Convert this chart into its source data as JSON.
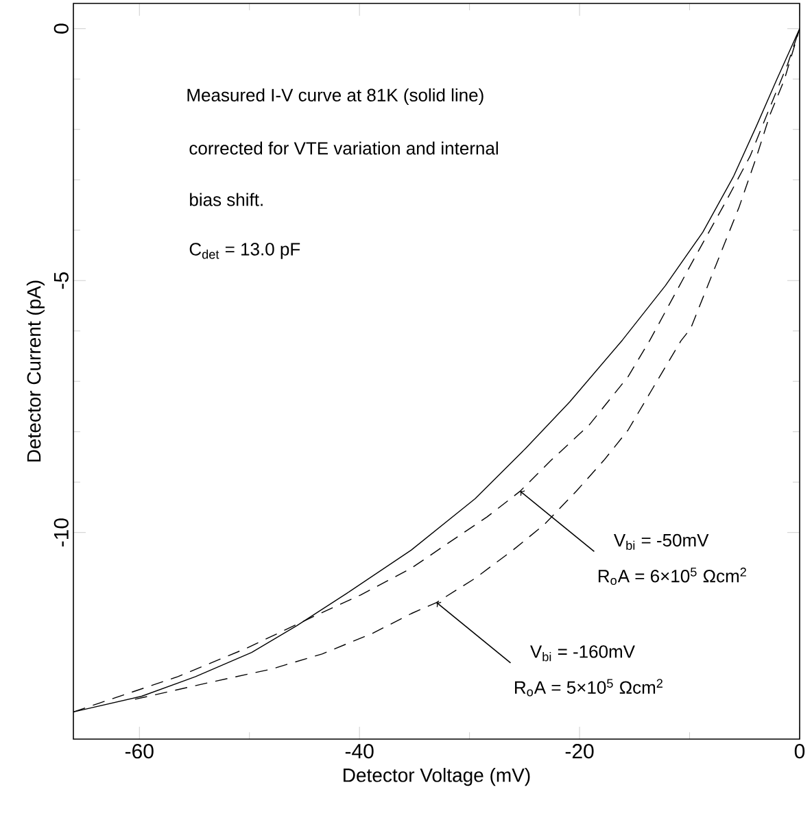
{
  "chart_data": {
    "type": "line",
    "xlabel": "Detector Voltage (mV)",
    "ylabel": "Detector Current (pA)",
    "xlim": [
      -66,
      0
    ],
    "ylim": [
      -14.1,
      0.5
    ],
    "xticks": [
      -60,
      -40,
      -20,
      0
    ],
    "yticks": [
      -10,
      -5,
      0
    ],
    "series": [
      {
        "color": "#000000",
        "line_style": "solid",
        "x": [
          -66.0,
          -59.8,
          -54.9,
          -49.8,
          -45.7,
          -41.1,
          -35.3,
          -29.5,
          -24.9,
          -20.9,
          -16.1,
          -12.2,
          -8.8,
          -6.0,
          -3.9,
          -2.1,
          0
        ],
        "values": [
          -13.56,
          -13.25,
          -12.86,
          -12.38,
          -11.85,
          -11.2,
          -10.35,
          -9.33,
          -8.33,
          -7.41,
          -6.18,
          -5.1,
          -4.04,
          -2.93,
          -1.92,
          -1.02,
          0
        ]
      },
      {
        "color": "#000000",
        "line_style": "dashed",
        "x": [
          -66.0,
          -63.7,
          -56.5,
          -50.3,
          -44.5,
          -39.9,
          -35.3,
          -31.8,
          -28.4,
          -25.4,
          -22.6,
          -19.1,
          -15.6,
          -13.6,
          -9.9,
          -6.7,
          -4.5,
          -2.7,
          -1.1,
          0
        ],
        "values": [
          -13.56,
          -13.39,
          -12.86,
          -12.3,
          -11.7,
          -11.24,
          -10.71,
          -10.19,
          -9.69,
          -9.18,
          -8.57,
          -7.86,
          -6.91,
          -6.18,
          -4.69,
          -3.43,
          -2.53,
          -1.56,
          -0.71,
          0
        ]
      },
      {
        "color": "#000000",
        "line_style": "dashed",
        "x": [
          -60.4,
          -53.7,
          -48.0,
          -43.4,
          -38.8,
          -35.3,
          -33.0,
          -29.5,
          -26.0,
          -23.2,
          -20.3,
          -17.8,
          -15.6,
          -13.3,
          -10.8,
          -9.9,
          -7.6,
          -5.5,
          -3.9,
          -2.7,
          -1.4,
          0
        ],
        "values": [
          -13.31,
          -12.98,
          -12.71,
          -12.41,
          -12.0,
          -11.61,
          -11.39,
          -10.91,
          -10.34,
          -9.84,
          -9.18,
          -8.57,
          -7.97,
          -7.12,
          -6.2,
          -5.95,
          -4.69,
          -3.54,
          -2.53,
          -1.71,
          -1.02,
          0
        ]
      }
    ],
    "annotations": [
      "Measured I-V curve at 81K  (solid line)",
      "corrected for VTE variation and internal",
      "bias shift.",
      "C$_{det}$ = 13.0 pF",
      {
        "text": "V$_{bi}$ = -50mV",
        "x": -25.4,
        "y": -9.18
      },
      "R$_{o}$A = 6×10$^{5}$ Ωcm$^{2}$",
      {
        "text": "V$_{bi}$ = -160mV",
        "x": -33.0,
        "y": -11.39
      },
      "R$_{o}$A = 5×10$^{5}$ Ωcm$^{2}$"
    ]
  }
}
